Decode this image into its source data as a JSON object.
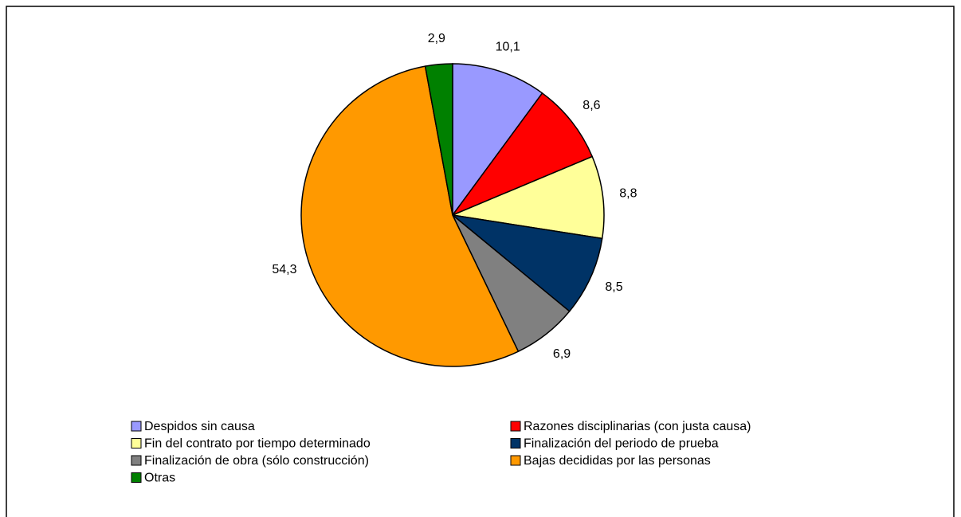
{
  "chart_data": {
    "type": "pie",
    "categories": [
      "Despidos sin causa",
      "Razones disciplinarias (con justa causa)",
      "Fin del contrato por tiempo determinado",
      "Finalización del periodo de prueba",
      "Finalización de obra (sólo construcción)",
      "Bajas decididas por las personas",
      "Otras"
    ],
    "values": [
      10.1,
      8.6,
      8.8,
      8.5,
      6.9,
      54.3,
      2.9
    ],
    "value_labels": [
      "10,1",
      "8,6",
      "8,8",
      "8,5",
      "6,9",
      "54,3",
      "2,9"
    ],
    "colors": [
      "#9999ff",
      "#ff0000",
      "#ffff99",
      "#003366",
      "#808080",
      "#ff9900",
      "#008000"
    ],
    "legend": "bottom"
  }
}
